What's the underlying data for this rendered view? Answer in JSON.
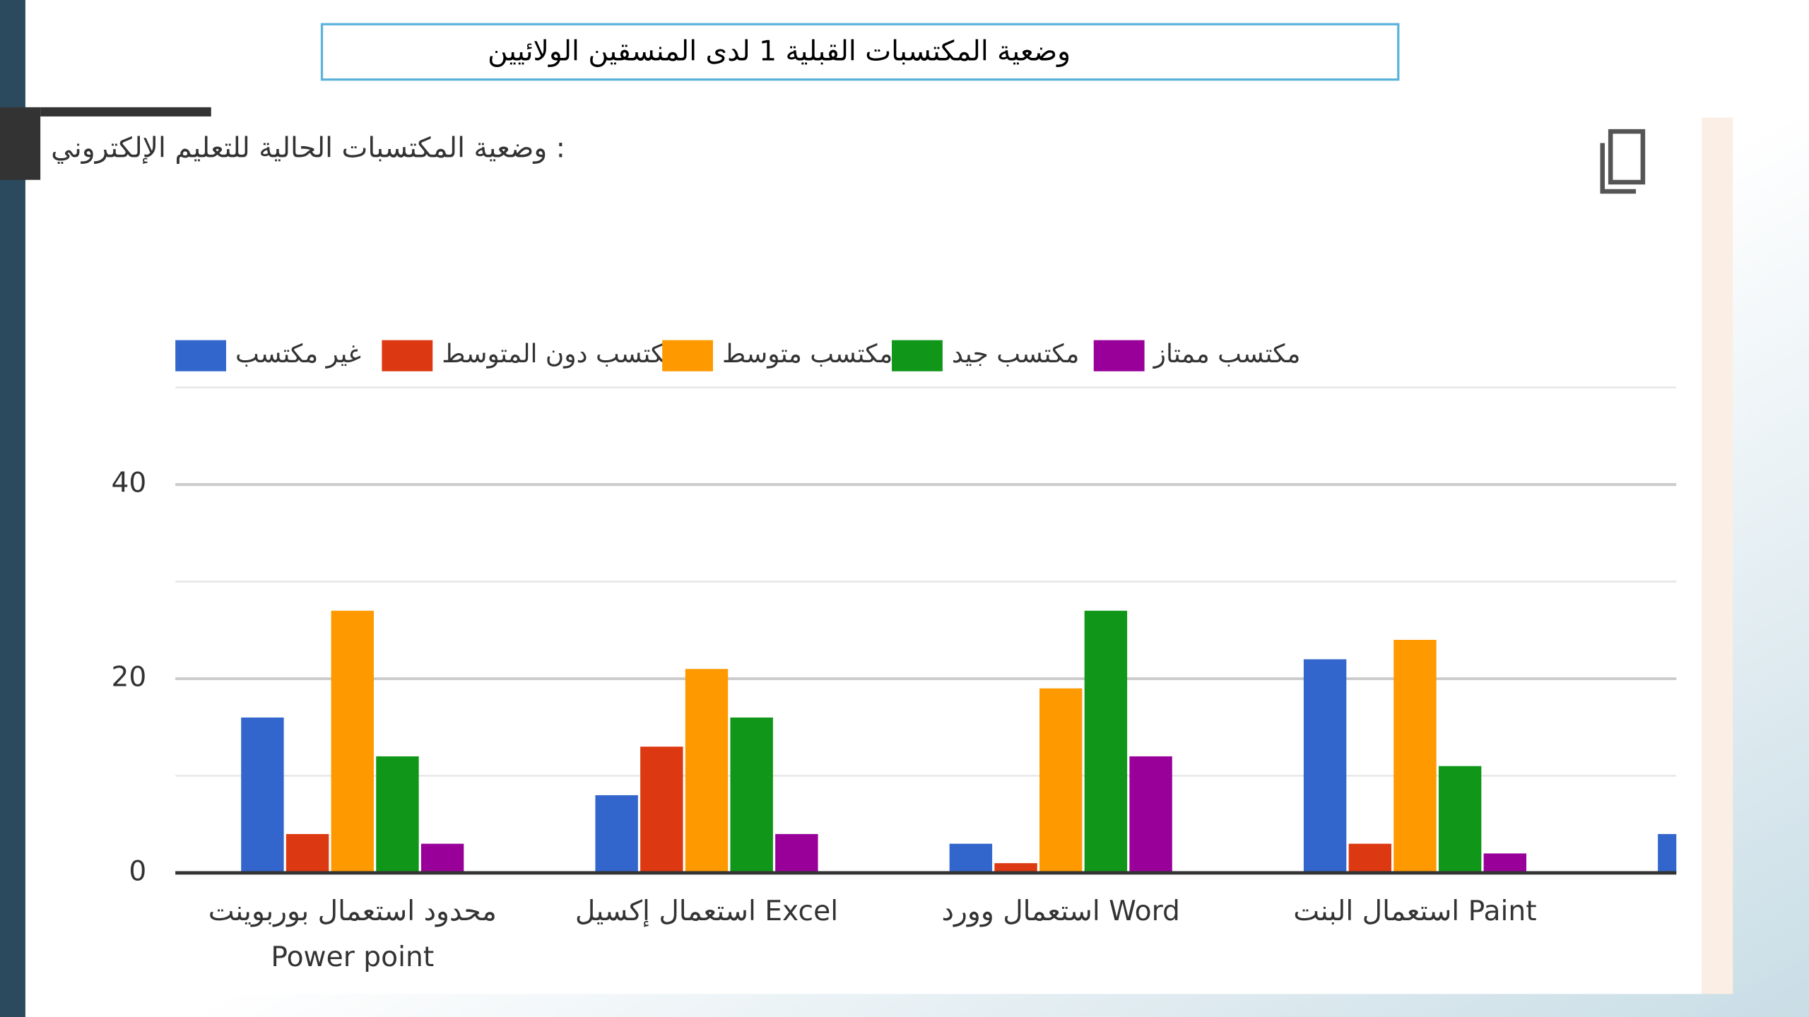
{
  "slide_title": "وضعية المكتسبات القبلية 1 لدى المنسقين الولائيين",
  "chart_data": {
    "type": "bar",
    "title": "وضعية المكتسبات الحالية للتعليم الإلكتروني :",
    "categories": [
      "محدود استعمال بوربوينت Power point",
      "استعمال إكسيل Excel",
      "استعمال وورد Word",
      "استعمال البنت Paint",
      null
    ],
    "series": [
      {
        "name": "غير مكتسب",
        "color": "#3366cc",
        "values": [
          16,
          8,
          3,
          22,
          4
        ]
      },
      {
        "name": "مكتسب دون المتوسط",
        "color": "#dc3912",
        "values": [
          4,
          13,
          1,
          3,
          null
        ]
      },
      {
        "name": "مكتسب متوسط",
        "color": "#ff9900",
        "values": [
          27,
          21,
          19,
          24,
          null
        ]
      },
      {
        "name": "مكتسب جيد",
        "color": "#109618",
        "values": [
          12,
          16,
          27,
          11,
          null
        ]
      },
      {
        "name": "مكتسب ممتاز",
        "color": "#990099",
        "values": [
          3,
          4,
          12,
          2,
          null
        ]
      }
    ],
    "ylim": [
      0,
      50
    ],
    "yticks": [
      0,
      20,
      40
    ],
    "minor_yticks": [
      10,
      30,
      50
    ],
    "grid": true,
    "legend": "top"
  }
}
